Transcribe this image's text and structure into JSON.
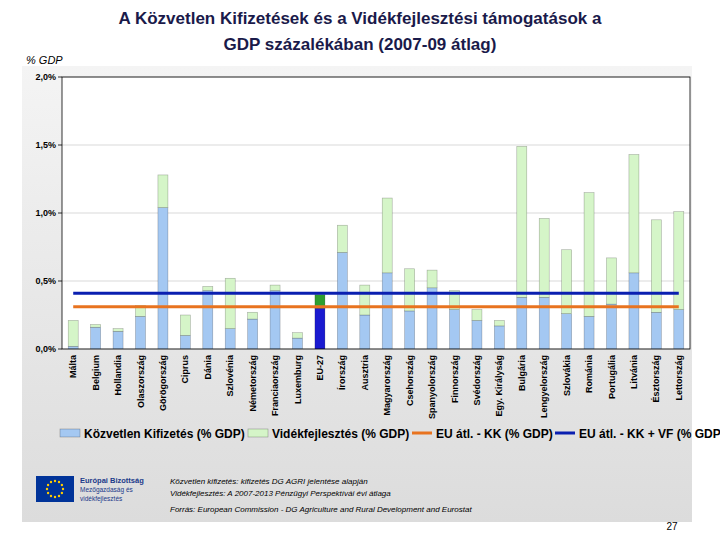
{
  "chart_data": {
    "type": "bar",
    "title": [
      "A Közvetlen Kifizetések és a Vidékfejlesztési támogatások a",
      "GDP százalékában (2007-09 átlag)"
    ],
    "y_label": "% GDP",
    "stacked": true,
    "grid": true,
    "legend": "bottom",
    "categories": [
      "Málta",
      "Belgium",
      "Hollandia",
      "Olaszország",
      "Görögország",
      "Ciprus",
      "Dánia",
      "Szlovénia",
      "Németország",
      "Franciaország",
      "Luxemburg",
      "EU-27",
      "Írország",
      "Ausztria",
      "Magyarország",
      "Csehország",
      "Spanyolország",
      "Finnország",
      "Svédország",
      "Egy. Királyság",
      "Bulgária",
      "Lengyelország",
      "Szlovákia",
      "Románia",
      "Portugália",
      "Litvánia",
      "Észtország",
      "Lettország"
    ],
    "series": [
      {
        "name": "Közvetlen Kifizetés (% GDP)",
        "type": "bar",
        "color": "#a4c8f2",
        "colors": [
          "#a4c8f2",
          "#a4c8f2",
          "#a4c8f2",
          "#a4c8f2",
          "#a4c8f2",
          "#a4c8f2",
          "#a4c8f2",
          "#a4c8f2",
          "#a4c8f2",
          "#a4c8f2",
          "#a4c8f2",
          "#1a1ad0",
          "#a4c8f2",
          "#a4c8f2",
          "#a4c8f2",
          "#a4c8f2",
          "#a4c8f2",
          "#a4c8f2",
          "#a4c8f2",
          "#a4c8f2",
          "#a4c8f2",
          "#a4c8f2",
          "#a4c8f2",
          "#a4c8f2",
          "#a4c8f2",
          "#a4c8f2",
          "#a4c8f2",
          "#a4c8f2"
        ],
        "values": [
          0.02,
          0.16,
          0.13,
          0.24,
          1.04,
          0.1,
          0.43,
          0.15,
          0.22,
          0.43,
          0.08,
          0.3,
          0.71,
          0.25,
          0.56,
          0.28,
          0.45,
          0.29,
          0.21,
          0.17,
          0.38,
          0.38,
          0.26,
          0.24,
          0.33,
          0.56,
          0.27,
          0.29
        ]
      },
      {
        "name": "Vidékfejlesztés (% GDP)",
        "type": "bar",
        "color": "#d5f5c8",
        "colors": [
          "#d5f5c8",
          "#d5f5c8",
          "#d5f5c8",
          "#d5f5c8",
          "#d5f5c8",
          "#d5f5c8",
          "#d5f5c8",
          "#d5f5c8",
          "#d5f5c8",
          "#d5f5c8",
          "#d5f5c8",
          "#2e9e2e",
          "#d5f5c8",
          "#d5f5c8",
          "#d5f5c8",
          "#d5f5c8",
          "#d5f5c8",
          "#d5f5c8",
          "#d5f5c8",
          "#d5f5c8",
          "#d5f5c8",
          "#d5f5c8",
          "#d5f5c8",
          "#d5f5c8",
          "#d5f5c8",
          "#d5f5c8",
          "#d5f5c8",
          "#d5f5c8"
        ],
        "values": [
          0.19,
          0.02,
          0.02,
          0.08,
          0.24,
          0.15,
          0.03,
          0.37,
          0.05,
          0.04,
          0.04,
          0.1,
          0.2,
          0.22,
          0.55,
          0.31,
          0.13,
          0.14,
          0.08,
          0.04,
          1.11,
          0.58,
          0.47,
          0.91,
          0.34,
          0.87,
          0.68,
          0.72
        ]
      },
      {
        "name": "EU átl. - KK (% GDP)",
        "type": "line",
        "color": "#e8731f",
        "values": [
          0.31,
          0.31,
          0.31,
          0.31,
          0.31,
          0.31,
          0.31,
          0.31,
          0.31,
          0.31,
          0.31,
          0.31,
          0.31,
          0.31,
          0.31,
          0.31,
          0.31,
          0.31,
          0.31,
          0.31,
          0.31,
          0.31,
          0.31,
          0.31,
          0.31,
          0.31,
          0.31,
          0.31
        ]
      },
      {
        "name": "EU átl. - KK + VF (% GDP)",
        "type": "line",
        "color": "#0a1fb0",
        "values": [
          0.41,
          0.41,
          0.41,
          0.41,
          0.41,
          0.41,
          0.41,
          0.41,
          0.41,
          0.41,
          0.41,
          0.41,
          0.41,
          0.41,
          0.41,
          0.41,
          0.41,
          0.41,
          0.41,
          0.41,
          0.41,
          0.41,
          0.41,
          0.41,
          0.41,
          0.41,
          0.41,
          0.41
        ]
      }
    ],
    "ylim": [
      0,
      2
    ],
    "yticks": [
      {
        "value": 0,
        "label": "0,0%"
      },
      {
        "value": 0.5,
        "label": "0,5%"
      },
      {
        "value": 1,
        "label": "1,0%"
      },
      {
        "value": 1.5,
        "label": "1,5%"
      },
      {
        "value": 2,
        "label": "2,0%"
      }
    ],
    "notes": [
      "Közvetlen kifizetés: kifizetés DG AGRI jelentése alapján",
      "Vidékfejlesztés: A 2007-2013 Pénzügyi Perspektívái évi átlaga"
    ],
    "source": "Forrás: European Commission - DG Agriculture and Rural Development and Eurostat",
    "logo": [
      "Európai Bizottság",
      "Mezőgazdaság és",
      "vidékfejlesztés"
    ],
    "page_number": "27"
  }
}
